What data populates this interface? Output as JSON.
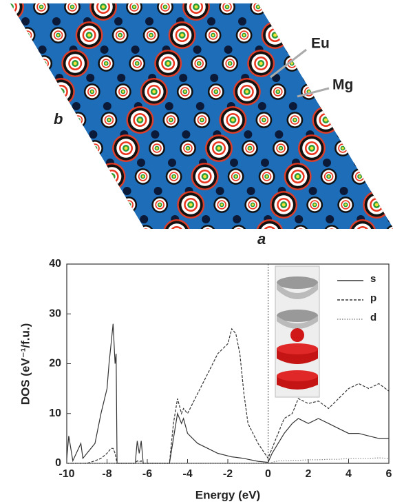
{
  "figure": {
    "labels": {
      "eu": "Eu",
      "mg": "Mg",
      "a": "a",
      "b": "b"
    }
  },
  "chart_data": {
    "type": "line",
    "xlabel": "Energy (eV)",
    "ylabel": "DOS (eV⁻¹/f.u.)",
    "xlim": [
      -10,
      6
    ],
    "xticks": [
      -10,
      -8,
      -6,
      -4,
      -2,
      0,
      2,
      4,
      6
    ],
    "ylim": [
      0,
      40
    ],
    "yticks": [
      0,
      10,
      20,
      30,
      40
    ],
    "vlines": [
      0
    ],
    "legend": "upper right",
    "x": [
      -10,
      -9.9,
      -9.7,
      -9.3,
      -9.2,
      -9,
      -8.6,
      -8.3,
      -8,
      -7.9,
      -7.8,
      -7.7,
      -7.6,
      -7.55,
      -7.5,
      -6.6,
      -6.5,
      -6.4,
      -6.3,
      -6.2,
      -5,
      -4.9,
      -4.7,
      -4.5,
      -4.3,
      -4.2,
      -4,
      -3.5,
      -3,
      -2.5,
      -2,
      -1.8,
      -1.6,
      -1.4,
      -1.2,
      -1,
      -0.5,
      0,
      0.2,
      0.5,
      0.8,
      1.2,
      1.5,
      2,
      2.5,
      3,
      3.5,
      4,
      4.5,
      5,
      5.5,
      6
    ],
    "series": [
      {
        "name": "s",
        "color": "#333333",
        "linestyle": "solid",
        "values": [
          1,
          5.5,
          0.5,
          4,
          1,
          2,
          4,
          10,
          15,
          20,
          24,
          28,
          20,
          22,
          0,
          0,
          4.5,
          2,
          4.5,
          0,
          0,
          0,
          5,
          10,
          8,
          9,
          6,
          4,
          3,
          2,
          1.5,
          1.3,
          1.2,
          1.1,
          1,
          0.8,
          0.4,
          0.2,
          2,
          4,
          6,
          8,
          9,
          8,
          9,
          8,
          7,
          6,
          6,
          5.5,
          5,
          5
        ]
      },
      {
        "name": "p",
        "color": "#333333",
        "linestyle": "dashed",
        "values": [
          0,
          0,
          0,
          0,
          0,
          0,
          0.5,
          1,
          2,
          2.5,
          3,
          3,
          2,
          1,
          0,
          0,
          0.5,
          0.3,
          0.5,
          0,
          0,
          0,
          8,
          13,
          10,
          11,
          10,
          14,
          18,
          22,
          24,
          27,
          26,
          22,
          14,
          8,
          4,
          1,
          3,
          6,
          9,
          10,
          13,
          12,
          12.5,
          11,
          13,
          15,
          16,
          15,
          16,
          14.5
        ]
      },
      {
        "name": "d",
        "color": "#888888",
        "linestyle": "dotted",
        "values": [
          0,
          0,
          0,
          0,
          0,
          0,
          0,
          0,
          0,
          0,
          0,
          0,
          0,
          0,
          0,
          0,
          0,
          0,
          0,
          0,
          0,
          0,
          0,
          0,
          0,
          0,
          0,
          0,
          0,
          0,
          0,
          0,
          0,
          0,
          0,
          0,
          0,
          0,
          0.2,
          0.5,
          0.5,
          0.6,
          0.6,
          0.7,
          0.7,
          0.8,
          0.8,
          1,
          1,
          1,
          1.1,
          1
        ]
      }
    ]
  }
}
